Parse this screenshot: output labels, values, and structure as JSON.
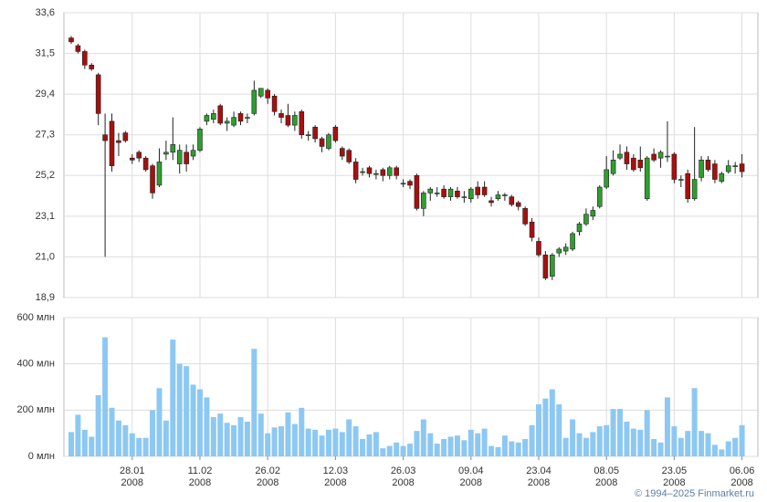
{
  "footer": "© 1994–2025 Finmarket.ru",
  "chart_data": [
    {
      "type": "candlestick",
      "up_color": "#2f9e2f",
      "down_color": "#a80f0f",
      "grid": true,
      "ylim": [
        18.9,
        33.6
      ],
      "yticks": [
        {
          "value": 18.9,
          "label": "18,9"
        },
        {
          "value": 21.0,
          "label": "21,0"
        },
        {
          "value": 23.1,
          "label": "23,1"
        },
        {
          "value": 25.2,
          "label": "25,2"
        },
        {
          "value": 27.3,
          "label": "27,3"
        },
        {
          "value": 29.4,
          "label": "29,4"
        },
        {
          "value": 31.5,
          "label": "31,5"
        },
        {
          "value": 33.6,
          "label": "33,6"
        }
      ],
      "open": [
        32.3,
        31.9,
        31.6,
        30.9,
        30.4,
        27.3,
        28.0,
        27.0,
        27.4,
        26.1,
        26.4,
        26.1,
        25.7,
        24.7,
        26.3,
        26.4,
        25.8,
        26.4,
        26.2,
        26.5,
        28.0,
        28.1,
        28.8,
        27.9,
        27.8,
        28.4,
        28.2,
        28.4,
        29.3,
        29.6,
        29.3,
        28.4,
        28.3,
        27.8,
        28.5,
        27.3,
        27.7,
        27.1,
        26.6,
        27.7,
        26.6,
        26.5,
        25.9,
        25.4,
        25.6,
        25.3,
        25.5,
        25.2,
        25.6,
        24.8,
        24.9,
        25.2,
        23.5,
        24.3,
        24.3,
        24.5,
        24.1,
        24.4,
        24.1,
        24.0,
        24.6,
        24.6,
        23.9,
        24.0,
        24.2,
        24.1,
        23.8,
        23.5,
        22.8,
        21.8,
        21.1,
        20.0,
        21.2,
        21.3,
        21.4,
        22.3,
        22.7,
        23.1,
        23.6,
        24.6,
        25.3,
        26.1,
        26.4,
        26.1,
        26.0,
        24.0,
        26.3,
        26.1,
        26.2,
        26.3,
        25.0,
        25.3,
        24.0,
        25.1,
        26.0,
        25.8,
        24.9,
        25.4,
        25.7,
        25.8
      ],
      "high": [
        32.4,
        32.0,
        31.7,
        31.0,
        30.5,
        28.4,
        28.4,
        27.4,
        27.5,
        26.3,
        26.5,
        26.2,
        25.8,
        26.6,
        27.0,
        28.2,
        26.8,
        26.8,
        26.8,
        27.7,
        28.4,
        28.6,
        28.9,
        28.2,
        28.5,
        28.5,
        28.4,
        30.1,
        29.7,
        29.7,
        29.4,
        28.6,
        28.9,
        28.5,
        28.6,
        27.5,
        27.8,
        27.2,
        27.4,
        27.8,
        26.7,
        26.6,
        26.1,
        25.6,
        25.7,
        25.5,
        25.6,
        25.7,
        25.7,
        25.0,
        25.0,
        25.3,
        24.4,
        24.6,
        24.6,
        24.7,
        24.6,
        24.6,
        24.4,
        24.6,
        24.9,
        24.9,
        24.1,
        24.4,
        24.3,
        24.2,
        23.9,
        23.6,
        23.0,
        22.0,
        21.3,
        21.2,
        21.5,
        21.7,
        22.3,
        22.8,
        23.5,
        23.6,
        24.7,
        26.2,
        26.5,
        26.8,
        26.7,
        26.3,
        26.7,
        26.2,
        26.6,
        26.5,
        28.0,
        26.4,
        25.2,
        25.5,
        27.7,
        26.2,
        26.2,
        26.0,
        25.4,
        26.0,
        25.9,
        26.3
      ],
      "low": [
        32.0,
        31.5,
        30.7,
        30.6,
        27.8,
        21.0,
        25.4,
        26.2,
        26.9,
        25.8,
        25.9,
        25.4,
        24.0,
        24.6,
        26.0,
        26.0,
        25.3,
        25.4,
        26.0,
        26.4,
        27.8,
        27.9,
        27.8,
        27.5,
        27.7,
        27.8,
        27.9,
        28.3,
        29.2,
        28.9,
        28.3,
        27.9,
        27.7,
        27.5,
        27.1,
        27.0,
        26.9,
        26.4,
        26.5,
        26.9,
        26.0,
        25.8,
        24.8,
        25.2,
        25.1,
        25.0,
        24.9,
        25.0,
        25.0,
        24.6,
        24.5,
        23.4,
        23.1,
        23.9,
        24.1,
        24.0,
        23.9,
        24.0,
        23.8,
        23.8,
        24.0,
        24.1,
        23.6,
        23.9,
        23.9,
        23.6,
        23.4,
        22.6,
        21.8,
        21.0,
        19.8,
        19.8,
        21.0,
        21.1,
        21.3,
        22.1,
        22.6,
        22.9,
        23.5,
        24.5,
        25.2,
        26.0,
        25.5,
        25.4,
        25.4,
        23.9,
        25.9,
        25.6,
        25.9,
        24.8,
        24.6,
        23.8,
        23.9,
        24.9,
        25.4,
        24.8,
        24.8,
        25.3,
        25.3,
        25.1
      ],
      "close": [
        32.1,
        31.6,
        30.9,
        30.7,
        28.4,
        27.0,
        25.7,
        26.9,
        27.0,
        26.0,
        26.1,
        25.5,
        24.3,
        25.9,
        26.4,
        26.8,
        26.5,
        25.8,
        26.5,
        27.6,
        28.3,
        28.4,
        27.9,
        28.0,
        28.2,
        28.0,
        28.2,
        29.6,
        29.7,
        29.2,
        28.5,
        28.2,
        27.8,
        28.3,
        27.3,
        27.3,
        27.1,
        26.7,
        27.3,
        27.0,
        26.2,
        25.9,
        25.0,
        25.4,
        25.3,
        25.3,
        25.2,
        25.6,
        25.2,
        24.8,
        24.7,
        23.5,
        24.3,
        24.5,
        24.3,
        24.1,
        24.5,
        24.1,
        24.1,
        24.5,
        24.2,
        24.2,
        23.8,
        24.2,
        24.2,
        23.7,
        23.6,
        22.7,
        22.0,
        21.1,
        19.9,
        21.1,
        21.4,
        21.5,
        22.2,
        22.7,
        23.2,
        23.4,
        24.6,
        25.5,
        26.0,
        26.3,
        25.8,
        25.5,
        25.6,
        26.1,
        26.0,
        26.4,
        26.2,
        25.0,
        25.0,
        24.0,
        25.0,
        26.0,
        25.5,
        25.0,
        25.3,
        25.7,
        25.7,
        25.4
      ]
    },
    {
      "type": "bar",
      "color": "#8dc8f2",
      "grid": true,
      "ylim": [
        0,
        600
      ],
      "yticks": [
        {
          "value": 0,
          "label": "0 млн"
        },
        {
          "value": 200,
          "label": "200 млн"
        },
        {
          "value": 400,
          "label": "400 млн"
        },
        {
          "value": 600,
          "label": "600 млн"
        }
      ],
      "xtick_year": "2008",
      "categories": [
        null,
        null,
        null,
        null,
        null,
        null,
        null,
        null,
        null,
        "28.01",
        null,
        null,
        null,
        null,
        null,
        null,
        null,
        null,
        null,
        "11.02",
        null,
        null,
        null,
        null,
        null,
        null,
        null,
        null,
        null,
        "26.02",
        null,
        null,
        null,
        null,
        null,
        null,
        null,
        null,
        null,
        "12.03",
        null,
        null,
        null,
        null,
        null,
        null,
        null,
        null,
        null,
        "26.03",
        null,
        null,
        null,
        null,
        null,
        null,
        null,
        null,
        null,
        "09.04",
        null,
        null,
        null,
        null,
        null,
        null,
        null,
        null,
        null,
        "23.04",
        null,
        null,
        null,
        null,
        null,
        null,
        null,
        null,
        null,
        "08.05",
        null,
        null,
        null,
        null,
        null,
        null,
        null,
        null,
        null,
        "23.05",
        null,
        null,
        null,
        null,
        null,
        null,
        null,
        null,
        null,
        "06.06"
      ],
      "values": [
        105,
        180,
        115,
        85,
        265,
        515,
        210,
        155,
        135,
        100,
        80,
        80,
        200,
        295,
        155,
        505,
        400,
        390,
        310,
        290,
        255,
        170,
        185,
        145,
        135,
        170,
        150,
        465,
        185,
        100,
        125,
        130,
        190,
        140,
        210,
        120,
        115,
        90,
        115,
        120,
        105,
        160,
        130,
        75,
        95,
        105,
        35,
        45,
        60,
        45,
        55,
        110,
        160,
        100,
        55,
        75,
        85,
        90,
        70,
        115,
        100,
        120,
        45,
        40,
        90,
        65,
        60,
        75,
        135,
        225,
        250,
        290,
        225,
        80,
        160,
        100,
        80,
        105,
        130,
        135,
        205,
        205,
        150,
        120,
        115,
        200,
        75,
        60,
        255,
        130,
        80,
        110,
        295,
        110,
        100,
        50,
        30,
        65,
        80,
        135
      ]
    }
  ]
}
